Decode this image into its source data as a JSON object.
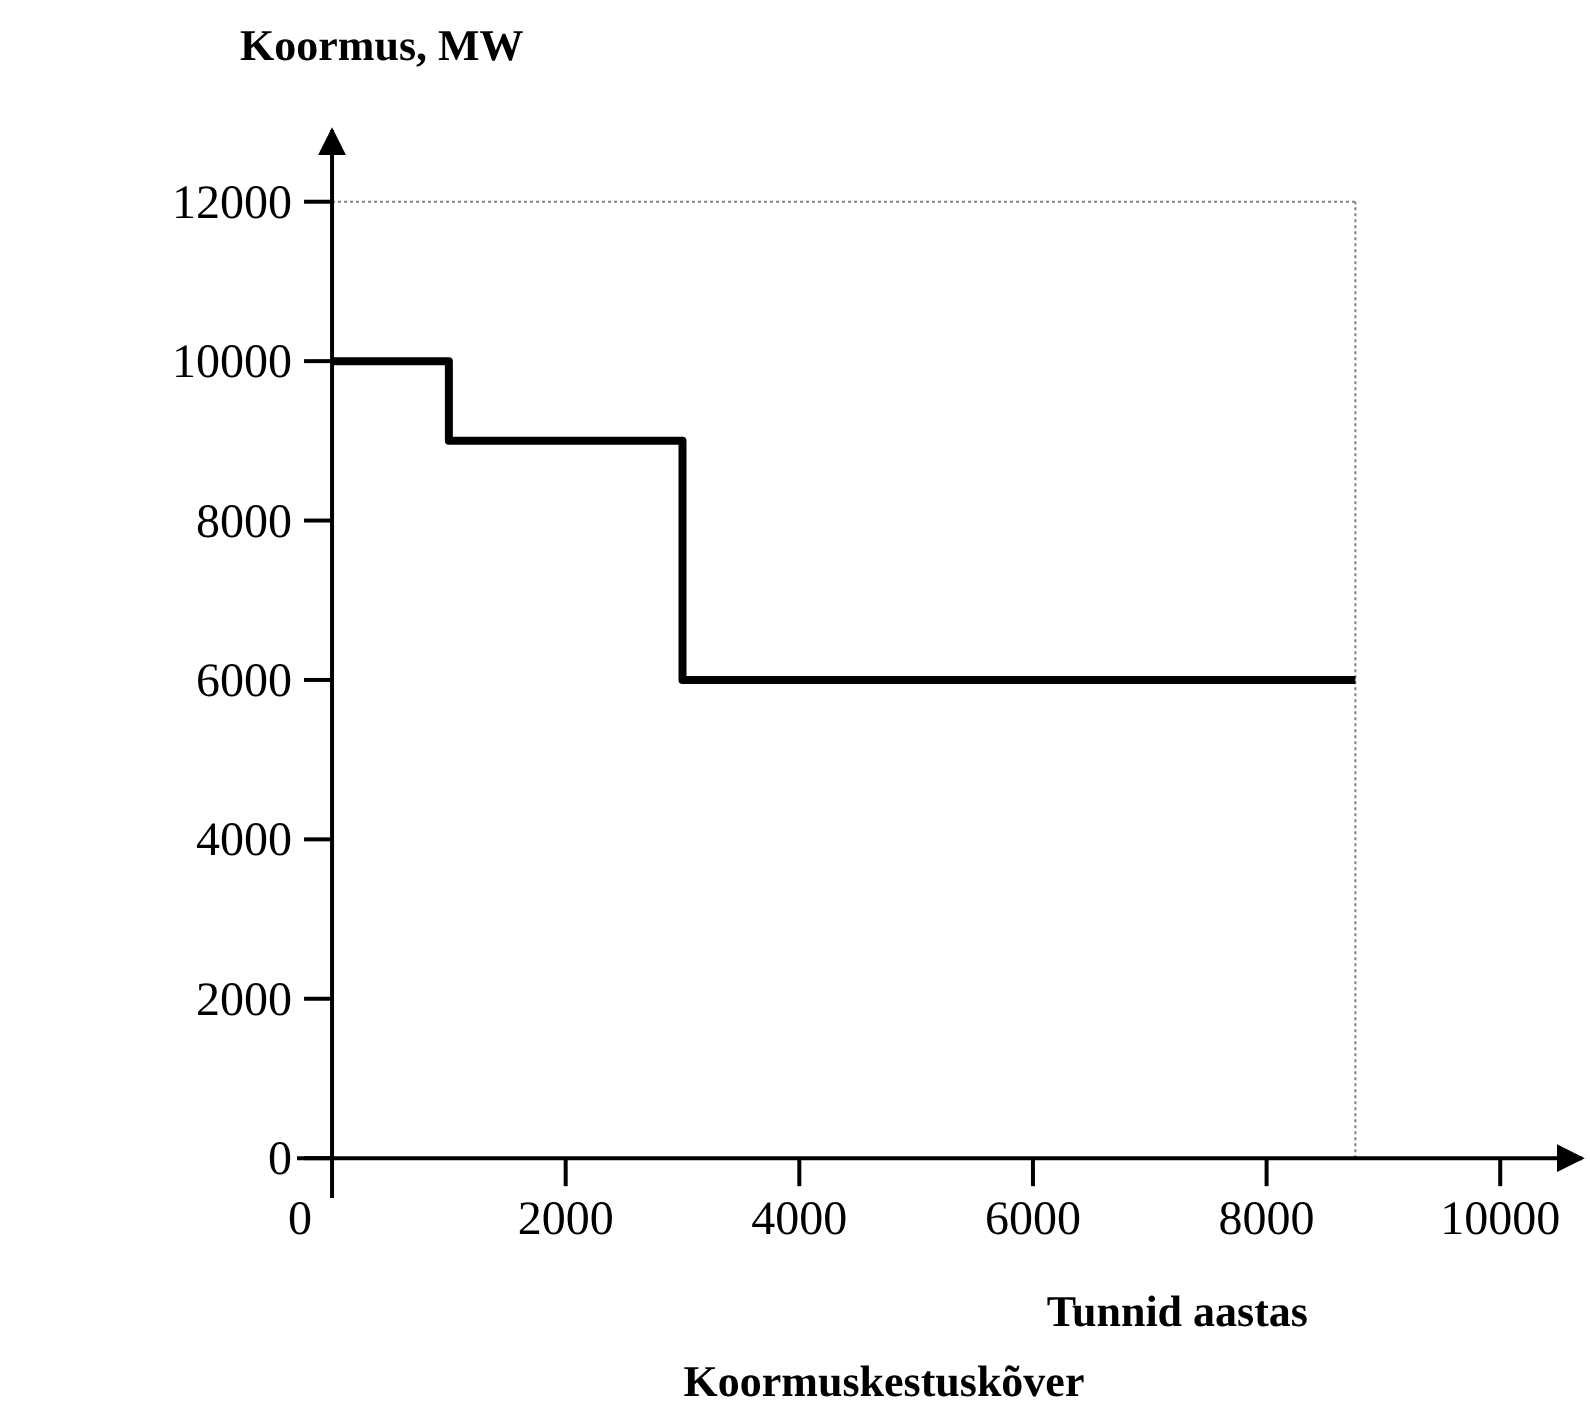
{
  "chart_data": {
    "type": "step",
    "title": "Koormuskestuskõver",
    "xlabel": "Tunnid aastas",
    "ylabel": "Koormus, MW",
    "x": [
      0,
      1000,
      3000,
      8760
    ],
    "series": [
      {
        "color": "#000000",
        "values": [
          10000,
          9000,
          6000,
          6000
        ]
      }
    ],
    "xlim": [
      -300,
      10700
    ],
    "ylim": [
      -500,
      12900
    ],
    "xticks": [
      0,
      2000,
      4000,
      6000,
      8000,
      10000
    ],
    "yticks": [
      0,
      2000,
      4000,
      6000,
      8000,
      10000,
      12000
    ],
    "ref_lines": [
      {
        "axis": "y",
        "value": 12000,
        "line_style": "dotted",
        "color": "#808080"
      },
      {
        "axis": "x",
        "value": 8760,
        "line_style": "dotted",
        "color": "#808080"
      }
    ],
    "grid": false,
    "marker": "none",
    "line_style": "solid"
  }
}
